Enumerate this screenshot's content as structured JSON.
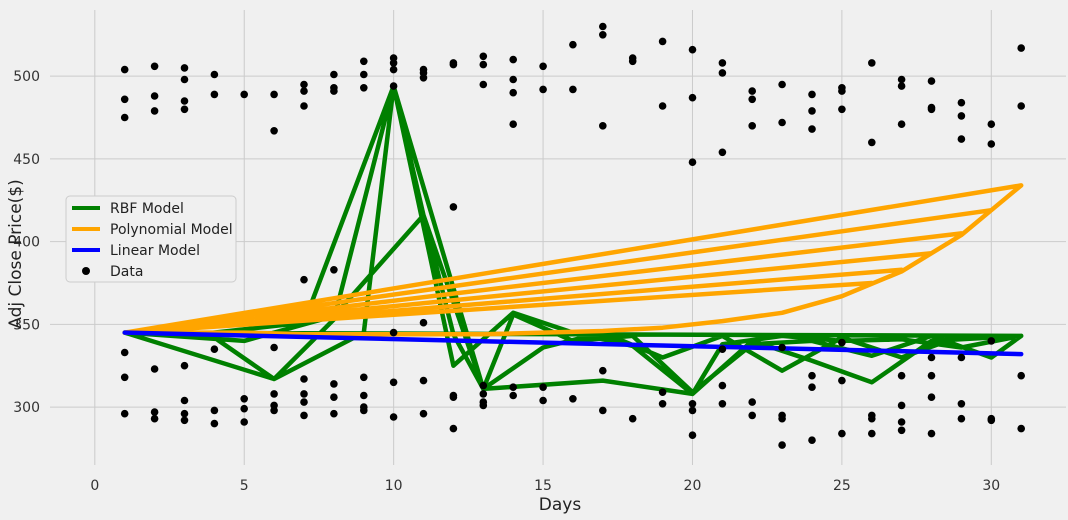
{
  "chart_data": {
    "type": "scatter",
    "xlabel": "Days",
    "ylabel": "Adj Close Price($)",
    "xlim": [
      -1.5,
      32.5
    ],
    "ylim": [
      265,
      540
    ],
    "xticks": [
      0,
      5,
      10,
      15,
      20,
      25,
      30
    ],
    "yticks": [
      300,
      350,
      400,
      450,
      500
    ],
    "grid": true,
    "legend_position": "left",
    "legend": [
      "RBF Model",
      "Polynomial Model",
      "Linear Model",
      "Data"
    ],
    "series": [
      {
        "name": "Data",
        "kind": "scatter",
        "color": "#000000",
        "points": [
          [
            1,
            504
          ],
          [
            1,
            486
          ],
          [
            1,
            475
          ],
          [
            1,
            333
          ],
          [
            1,
            318
          ],
          [
            1,
            296
          ],
          [
            2,
            506
          ],
          [
            2,
            488
          ],
          [
            2,
            479
          ],
          [
            2,
            323
          ],
          [
            2,
            297
          ],
          [
            2,
            293
          ],
          [
            3,
            505
          ],
          [
            3,
            498
          ],
          [
            3,
            485
          ],
          [
            3,
            480
          ],
          [
            3,
            325
          ],
          [
            3,
            304
          ],
          [
            3,
            296
          ],
          [
            3,
            292
          ],
          [
            4,
            501
          ],
          [
            4,
            489
          ],
          [
            4,
            335
          ],
          [
            4,
            298
          ],
          [
            4,
            290
          ],
          [
            5,
            489
          ],
          [
            5,
            305
          ],
          [
            5,
            299
          ],
          [
            5,
            291
          ],
          [
            6,
            489
          ],
          [
            6,
            467
          ],
          [
            6,
            336
          ],
          [
            6,
            308
          ],
          [
            6,
            301
          ],
          [
            6,
            298
          ],
          [
            7,
            495
          ],
          [
            7,
            491
          ],
          [
            7,
            482
          ],
          [
            7,
            377
          ],
          [
            7,
            317
          ],
          [
            7,
            308
          ],
          [
            7,
            303
          ],
          [
            7,
            295
          ],
          [
            8,
            501
          ],
          [
            8,
            493
          ],
          [
            8,
            491
          ],
          [
            8,
            383
          ],
          [
            8,
            314
          ],
          [
            8,
            306
          ],
          [
            8,
            296
          ],
          [
            9,
            509
          ],
          [
            9,
            501
          ],
          [
            9,
            493
          ],
          [
            9,
            318
          ],
          [
            9,
            307
          ],
          [
            9,
            300
          ],
          [
            9,
            298
          ],
          [
            10,
            511
          ],
          [
            10,
            508
          ],
          [
            10,
            504
          ],
          [
            10,
            494
          ],
          [
            10,
            345
          ],
          [
            10,
            315
          ],
          [
            10,
            294
          ],
          [
            11,
            504
          ],
          [
            11,
            502
          ],
          [
            11,
            499
          ],
          [
            11,
            351
          ],
          [
            11,
            316
          ],
          [
            11,
            296
          ],
          [
            12,
            508
          ],
          [
            12,
            507
          ],
          [
            12,
            421
          ],
          [
            12,
            307
          ],
          [
            12,
            306
          ],
          [
            12,
            287
          ],
          [
            13,
            512
          ],
          [
            13,
            507
          ],
          [
            13,
            495
          ],
          [
            13,
            313
          ],
          [
            13,
            308
          ],
          [
            13,
            303
          ],
          [
            13,
            301
          ],
          [
            14,
            510
          ],
          [
            14,
            498
          ],
          [
            14,
            490
          ],
          [
            14,
            471
          ],
          [
            14,
            312
          ],
          [
            14,
            307
          ],
          [
            15,
            506
          ],
          [
            15,
            492
          ],
          [
            15,
            312
          ],
          [
            15,
            304
          ],
          [
            16,
            519
          ],
          [
            16,
            492
          ],
          [
            16,
            305
          ],
          [
            17,
            530
          ],
          [
            17,
            525
          ],
          [
            17,
            470
          ],
          [
            17,
            322
          ],
          [
            17,
            298
          ],
          [
            18,
            511
          ],
          [
            18,
            509
          ],
          [
            18,
            293
          ],
          [
            19,
            521
          ],
          [
            19,
            482
          ],
          [
            19,
            309
          ],
          [
            19,
            302
          ],
          [
            20,
            516
          ],
          [
            20,
            487
          ],
          [
            20,
            448
          ],
          [
            20,
            302
          ],
          [
            20,
            298
          ],
          [
            20,
            283
          ],
          [
            21,
            508
          ],
          [
            21,
            502
          ],
          [
            21,
            454
          ],
          [
            21,
            335
          ],
          [
            21,
            313
          ],
          [
            21,
            302
          ],
          [
            22,
            491
          ],
          [
            22,
            486
          ],
          [
            22,
            470
          ],
          [
            22,
            303
          ],
          [
            22,
            295
          ],
          [
            23,
            495
          ],
          [
            23,
            472
          ],
          [
            23,
            336
          ],
          [
            23,
            295
          ],
          [
            23,
            293
          ],
          [
            23,
            277
          ],
          [
            24,
            489
          ],
          [
            24,
            479
          ],
          [
            24,
            468
          ],
          [
            24,
            319
          ],
          [
            24,
            312
          ],
          [
            24,
            280
          ],
          [
            25,
            493
          ],
          [
            25,
            491
          ],
          [
            25,
            480
          ],
          [
            25,
            339
          ],
          [
            25,
            316
          ],
          [
            25,
            284
          ],
          [
            26,
            508
          ],
          [
            26,
            460
          ],
          [
            26,
            295
          ],
          [
            26,
            293
          ],
          [
            26,
            284
          ],
          [
            27,
            498
          ],
          [
            27,
            494
          ],
          [
            27,
            471
          ],
          [
            27,
            319
          ],
          [
            27,
            301
          ],
          [
            27,
            291
          ],
          [
            27,
            286
          ],
          [
            28,
            497
          ],
          [
            28,
            481
          ],
          [
            28,
            480
          ],
          [
            28,
            330
          ],
          [
            28,
            319
          ],
          [
            28,
            306
          ],
          [
            28,
            284
          ],
          [
            29,
            484
          ],
          [
            29,
            476
          ],
          [
            29,
            462
          ],
          [
            29,
            330
          ],
          [
            29,
            302
          ],
          [
            29,
            293
          ],
          [
            30,
            471
          ],
          [
            30,
            459
          ],
          [
            30,
            340
          ],
          [
            30,
            293
          ],
          [
            30,
            292
          ],
          [
            31,
            517
          ],
          [
            31,
            482
          ],
          [
            31,
            319
          ],
          [
            31,
            287
          ]
        ]
      },
      {
        "name": "RBF Model",
        "kind": "line",
        "color": "#008000",
        "points": [
          [
            1,
            345
          ],
          [
            6,
            317
          ],
          [
            8,
            353
          ],
          [
            10,
            494
          ],
          [
            12,
            325
          ],
          [
            14,
            357
          ],
          [
            16,
            345
          ],
          [
            18,
            337
          ],
          [
            20,
            308
          ],
          [
            22,
            340
          ],
          [
            24,
            328
          ],
          [
            26,
            315
          ],
          [
            28,
            340
          ],
          [
            31,
            343
          ],
          [
            1,
            345
          ],
          [
            3,
            343
          ],
          [
            7,
            351
          ],
          [
            10,
            494
          ],
          [
            11,
            416
          ],
          [
            13,
            311
          ],
          [
            15,
            336
          ],
          [
            17,
            345
          ],
          [
            19,
            330
          ],
          [
            21,
            343
          ],
          [
            23,
            322
          ],
          [
            25,
            342
          ],
          [
            27,
            330
          ],
          [
            29,
            343
          ],
          [
            31,
            343
          ],
          [
            1,
            345
          ],
          [
            5,
            340
          ],
          [
            8,
            355
          ],
          [
            11,
            416
          ],
          [
            12,
            344
          ],
          [
            13,
            311
          ],
          [
            14,
            356
          ],
          [
            16,
            340
          ],
          [
            18,
            343
          ],
          [
            20,
            309
          ],
          [
            22,
            338
          ],
          [
            24,
            340
          ],
          [
            26,
            331
          ],
          [
            28,
            343
          ],
          [
            30,
            330
          ],
          [
            31,
            343
          ],
          [
            1,
            345
          ],
          [
            4,
            342
          ],
          [
            6,
            317
          ],
          [
            9,
            345
          ],
          [
            10,
            494
          ],
          [
            13,
            311
          ],
          [
            17,
            316
          ],
          [
            20,
            308
          ],
          [
            21,
            338
          ],
          [
            23,
            343
          ],
          [
            25,
            340
          ],
          [
            27,
            341
          ],
          [
            29,
            336
          ],
          [
            31,
            343
          ]
        ]
      },
      {
        "name": "Polynomial Model",
        "kind": "line",
        "color": "#FFA500",
        "points": [
          [
            1,
            345
          ],
          [
            31,
            434
          ],
          [
            1,
            345
          ],
          [
            30,
            419
          ],
          [
            1,
            345
          ],
          [
            29,
            405
          ],
          [
            1,
            345
          ],
          [
            28,
            393
          ],
          [
            1,
            345
          ],
          [
            27,
            383
          ],
          [
            1,
            345
          ],
          [
            26,
            375
          ],
          [
            1,
            345
          ],
          [
            3,
            345
          ],
          [
            5,
            345
          ],
          [
            7,
            344
          ],
          [
            9,
            344
          ],
          [
            11,
            344
          ],
          [
            13,
            344
          ],
          [
            15,
            345
          ],
          [
            17,
            346
          ],
          [
            19,
            348
          ],
          [
            21,
            352
          ],
          [
            23,
            357
          ],
          [
            25,
            367
          ],
          [
            27,
            382
          ],
          [
            29,
            404
          ],
          [
            30,
            419
          ],
          [
            31,
            434
          ]
        ]
      },
      {
        "name": "Linear Model",
        "kind": "line",
        "color": "#0000FF",
        "points": [
          [
            1,
            345
          ],
          [
            31,
            332
          ]
        ]
      }
    ]
  }
}
